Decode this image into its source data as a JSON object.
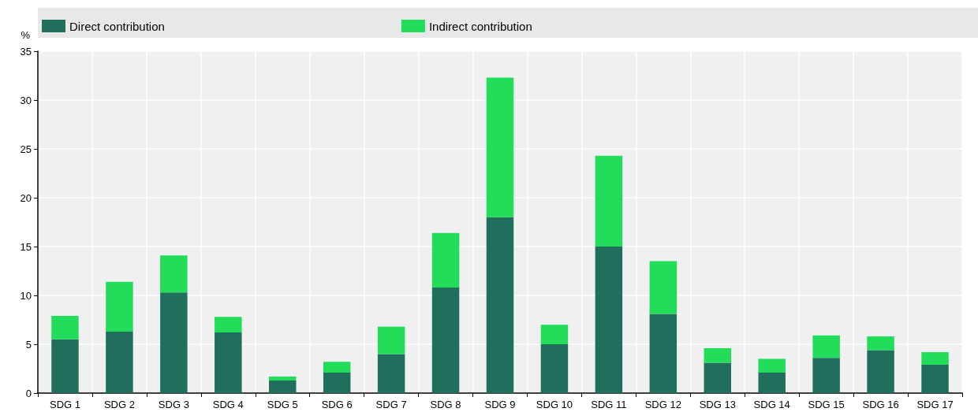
{
  "chart_data": {
    "type": "bar",
    "stacked": true,
    "ylabel": "%",
    "categories": [
      "SDG 1",
      "SDG 2",
      "SDG 3",
      "SDG 4",
      "SDG 5",
      "SDG 6",
      "SDG 7",
      "SDG 8",
      "SDG 9",
      "SDG 10",
      "SDG 11",
      "SDG 12",
      "SDG 13",
      "SDG 14",
      "SDG 15",
      "SDG 16",
      "SDG 17"
    ],
    "series": [
      {
        "name": "Direct contribution",
        "color": "#1f6f5c",
        "values": [
          5.5,
          6.3,
          10.3,
          6.2,
          1.3,
          2.1,
          4.0,
          10.8,
          18.0,
          5.0,
          15.0,
          8.1,
          3.1,
          2.1,
          3.6,
          4.4,
          2.9
        ]
      },
      {
        "name": "Indirect contribution",
        "color": "#22dd5a",
        "values": [
          2.4,
          5.1,
          3.8,
          1.6,
          0.4,
          1.1,
          2.8,
          5.6,
          14.3,
          2.0,
          9.3,
          5.4,
          1.5,
          1.4,
          2.3,
          1.4,
          1.3
        ]
      }
    ],
    "ylim": [
      0,
      35
    ],
    "yticks": [
      0,
      5,
      10,
      15,
      20,
      25,
      30,
      35
    ],
    "grid": true,
    "legend": "top"
  }
}
